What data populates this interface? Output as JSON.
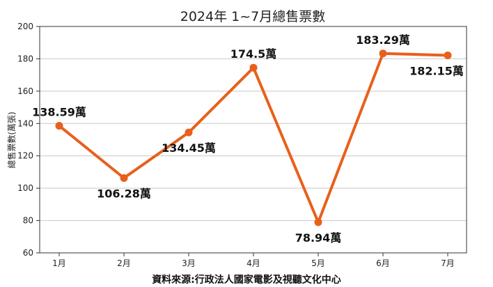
{
  "chart_data": {
    "type": "line",
    "title": "2024年 1~7月總售票數",
    "ylabel": "總售票數(萬張)",
    "xlabel": "",
    "source": "資料來源:行政法人國家電影及視聽文化中心",
    "categories": [
      "1月",
      "2月",
      "3月",
      "4月",
      "5月",
      "6月",
      "7月"
    ],
    "values": [
      138.59,
      106.28,
      134.45,
      174.5,
      78.94,
      183.29,
      182.15
    ],
    "data_labels": [
      "138.59萬",
      "106.28萬",
      "134.45萬",
      "174.5萬",
      "78.94萬",
      "183.29萬",
      "182.15萬"
    ],
    "label_positions": [
      "above",
      "below",
      "below",
      "above",
      "below",
      "above",
      "below"
    ],
    "ylim": [
      60,
      200
    ],
    "yticks": [
      60,
      80,
      100,
      120,
      140,
      160,
      180,
      200
    ],
    "grid": true,
    "line_color": "#E8601C"
  }
}
